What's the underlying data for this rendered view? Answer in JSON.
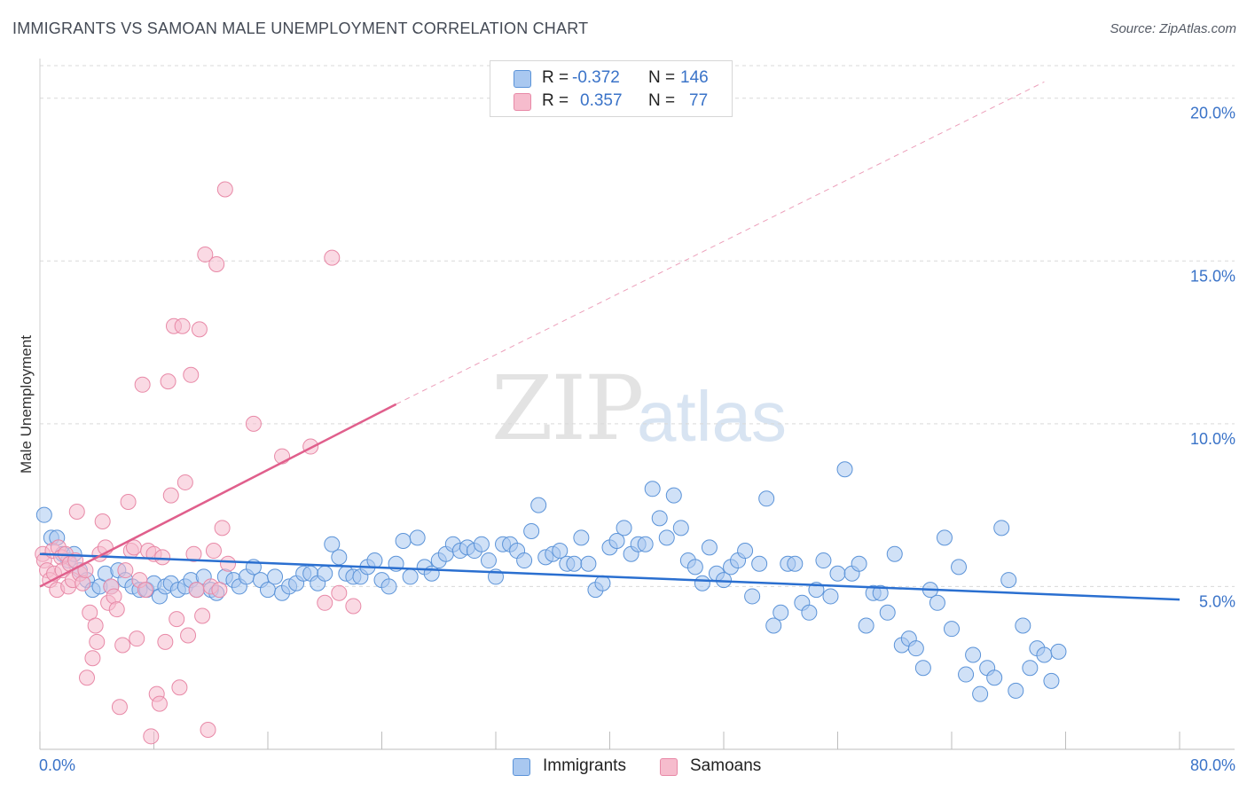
{
  "title": "IMMIGRANTS VS SAMOAN MALE UNEMPLOYMENT CORRELATION CHART",
  "source": "Source: ZipAtlas.com",
  "watermark": {
    "zip": "ZIP",
    "atlas": "atlas"
  },
  "colors": {
    "immigrants_fill": "#a9c8f0",
    "immigrants_stroke": "#5b93d8",
    "immigrants_line": "#2a6fd0",
    "samoans_fill": "#f6bccd",
    "samoans_stroke": "#e889a7",
    "samoans_line": "#e05f8c",
    "tick_label": "#3a73c8",
    "grid": "#d9d9d9"
  },
  "legend": {
    "rows": [
      {
        "r_label": "R =",
        "r_value": "-0.372",
        "n_label": "N =",
        "n_value": "146"
      },
      {
        "r_label": "R =",
        "r_value": "0.357",
        "n_label": "N =",
        "n_value": "77"
      }
    ]
  },
  "bottom_legend": {
    "immigrants": "Immigrants",
    "samoans": "Samoans"
  },
  "chart_data": {
    "type": "scatter",
    "xlabel": "",
    "ylabel": "Male Unemployment",
    "xlim": [
      0,
      80
    ],
    "ylim": [
      0,
      21
    ],
    "x_tick_labels": [
      "0.0%",
      "80.0%"
    ],
    "y_ticks": [
      5,
      10,
      15,
      20
    ],
    "y_tick_labels": [
      "5.0%",
      "10.0%",
      "15.0%",
      "20.0%"
    ],
    "grid": true,
    "legend_position": "top-center",
    "series": [
      {
        "name": "Immigrants",
        "trend": {
          "x": [
            0,
            80
          ],
          "y": [
            6.0,
            4.6
          ]
        },
        "points": [
          [
            0.3,
            7.2
          ],
          [
            0.8,
            6.5
          ],
          [
            1.2,
            6.5
          ],
          [
            1.6,
            6.0
          ],
          [
            2.0,
            5.8
          ],
          [
            2.4,
            6.0
          ],
          [
            2.8,
            5.5
          ],
          [
            3.3,
            5.2
          ],
          [
            3.7,
            4.9
          ],
          [
            4.2,
            5.0
          ],
          [
            4.6,
            5.4
          ],
          [
            5.0,
            5.0
          ],
          [
            5.5,
            5.5
          ],
          [
            6.0,
            5.2
          ],
          [
            6.5,
            5.0
          ],
          [
            7.0,
            4.9
          ],
          [
            7.5,
            4.9
          ],
          [
            8.0,
            5.1
          ],
          [
            8.4,
            4.7
          ],
          [
            8.8,
            5.0
          ],
          [
            9.2,
            5.1
          ],
          [
            9.7,
            4.9
          ],
          [
            10.2,
            5.0
          ],
          [
            10.6,
            5.2
          ],
          [
            11.0,
            4.9
          ],
          [
            11.5,
            5.3
          ],
          [
            12.0,
            4.9
          ],
          [
            12.4,
            4.8
          ],
          [
            13.0,
            5.3
          ],
          [
            13.6,
            5.2
          ],
          [
            14.0,
            5.0
          ],
          [
            14.5,
            5.3
          ],
          [
            15.0,
            5.6
          ],
          [
            15.5,
            5.2
          ],
          [
            16.0,
            4.9
          ],
          [
            16.5,
            5.3
          ],
          [
            17.0,
            4.8
          ],
          [
            17.5,
            5.0
          ],
          [
            18.0,
            5.1
          ],
          [
            18.5,
            5.4
          ],
          [
            19.0,
            5.4
          ],
          [
            19.5,
            5.1
          ],
          [
            20.0,
            5.4
          ],
          [
            20.5,
            6.3
          ],
          [
            21.0,
            5.9
          ],
          [
            21.5,
            5.4
          ],
          [
            22.0,
            5.3
          ],
          [
            22.5,
            5.3
          ],
          [
            23.0,
            5.6
          ],
          [
            23.5,
            5.8
          ],
          [
            24.0,
            5.2
          ],
          [
            24.5,
            5.0
          ],
          [
            25.0,
            5.7
          ],
          [
            25.5,
            6.4
          ],
          [
            26.0,
            5.3
          ],
          [
            26.5,
            6.5
          ],
          [
            27.0,
            5.6
          ],
          [
            27.5,
            5.4
          ],
          [
            28.0,
            5.8
          ],
          [
            28.5,
            6.0
          ],
          [
            29.0,
            6.3
          ],
          [
            29.5,
            6.1
          ],
          [
            30.0,
            6.2
          ],
          [
            30.5,
            6.1
          ],
          [
            31.0,
            6.3
          ],
          [
            31.5,
            5.8
          ],
          [
            32.0,
            5.3
          ],
          [
            32.5,
            6.3
          ],
          [
            33.0,
            6.3
          ],
          [
            33.5,
            6.1
          ],
          [
            34.0,
            5.8
          ],
          [
            34.5,
            6.7
          ],
          [
            35.0,
            7.5
          ],
          [
            35.5,
            5.9
          ],
          [
            36.0,
            6.0
          ],
          [
            36.5,
            6.1
          ],
          [
            37.0,
            5.7
          ],
          [
            37.5,
            5.7
          ],
          [
            38.0,
            6.5
          ],
          [
            38.5,
            5.7
          ],
          [
            39.0,
            4.9
          ],
          [
            39.5,
            5.1
          ],
          [
            40.0,
            6.2
          ],
          [
            40.5,
            6.4
          ],
          [
            41.0,
            6.8
          ],
          [
            41.5,
            6.0
          ],
          [
            42.0,
            6.3
          ],
          [
            42.5,
            6.3
          ],
          [
            43.0,
            8.0
          ],
          [
            43.5,
            7.1
          ],
          [
            44.0,
            6.5
          ],
          [
            44.5,
            7.8
          ],
          [
            45.0,
            6.8
          ],
          [
            45.5,
            5.8
          ],
          [
            46.0,
            5.6
          ],
          [
            46.5,
            5.1
          ],
          [
            47.0,
            6.2
          ],
          [
            47.5,
            5.4
          ],
          [
            48.0,
            5.2
          ],
          [
            48.5,
            5.6
          ],
          [
            49.0,
            5.8
          ],
          [
            49.5,
            6.1
          ],
          [
            50.0,
            4.7
          ],
          [
            50.5,
            5.7
          ],
          [
            51.0,
            7.7
          ],
          [
            51.5,
            3.8
          ],
          [
            52.0,
            4.2
          ],
          [
            52.5,
            5.7
          ],
          [
            53.0,
            5.7
          ],
          [
            53.5,
            4.5
          ],
          [
            54.0,
            4.2
          ],
          [
            54.5,
            4.9
          ],
          [
            55.0,
            5.8
          ],
          [
            55.5,
            4.7
          ],
          [
            56.0,
            5.4
          ],
          [
            56.5,
            8.6
          ],
          [
            57.0,
            5.4
          ],
          [
            57.5,
            5.7
          ],
          [
            58.0,
            3.8
          ],
          [
            58.5,
            4.8
          ],
          [
            59.0,
            4.8
          ],
          [
            59.5,
            4.2
          ],
          [
            60.0,
            6.0
          ],
          [
            60.5,
            3.2
          ],
          [
            61.0,
            3.4
          ],
          [
            61.5,
            3.1
          ],
          [
            62.0,
            2.5
          ],
          [
            62.5,
            4.9
          ],
          [
            63.0,
            4.5
          ],
          [
            63.5,
            6.5
          ],
          [
            64.0,
            3.7
          ],
          [
            64.5,
            5.6
          ],
          [
            65.0,
            2.3
          ],
          [
            65.5,
            2.9
          ],
          [
            66.0,
            1.7
          ],
          [
            66.5,
            2.5
          ],
          [
            67.0,
            2.2
          ],
          [
            67.5,
            6.8
          ],
          [
            68.0,
            5.2
          ],
          [
            68.5,
            1.8
          ],
          [
            69.0,
            3.8
          ],
          [
            69.5,
            2.5
          ],
          [
            70.0,
            3.1
          ],
          [
            70.5,
            2.9
          ],
          [
            71.0,
            2.1
          ],
          [
            71.5,
            3.0
          ]
        ]
      },
      {
        "name": "Samoans",
        "trend": {
          "x": [
            0,
            25
          ],
          "y": [
            5.0,
            10.6
          ]
        },
        "trend_extended": {
          "x": [
            25,
            70.5
          ],
          "y": [
            10.6,
            20.5
          ]
        },
        "points": [
          [
            0.2,
            6.0
          ],
          [
            0.3,
            5.8
          ],
          [
            0.5,
            5.5
          ],
          [
            0.7,
            5.2
          ],
          [
            0.9,
            6.1
          ],
          [
            1.0,
            5.4
          ],
          [
            1.2,
            4.9
          ],
          [
            1.3,
            6.2
          ],
          [
            1.5,
            5.9
          ],
          [
            1.6,
            5.5
          ],
          [
            1.8,
            6.0
          ],
          [
            2.0,
            5.0
          ],
          [
            2.1,
            5.7
          ],
          [
            2.3,
            5.2
          ],
          [
            2.5,
            5.8
          ],
          [
            2.6,
            7.3
          ],
          [
            2.8,
            5.4
          ],
          [
            3.0,
            5.1
          ],
          [
            3.2,
            5.5
          ],
          [
            3.3,
            2.2
          ],
          [
            3.5,
            4.2
          ],
          [
            3.7,
            2.8
          ],
          [
            3.9,
            3.8
          ],
          [
            4.0,
            3.3
          ],
          [
            4.2,
            6.0
          ],
          [
            4.4,
            7.0
          ],
          [
            4.6,
            6.2
          ],
          [
            4.8,
            4.5
          ],
          [
            5.0,
            5.0
          ],
          [
            5.2,
            4.7
          ],
          [
            5.4,
            4.3
          ],
          [
            5.6,
            1.3
          ],
          [
            5.8,
            3.2
          ],
          [
            6.0,
            5.5
          ],
          [
            6.2,
            7.6
          ],
          [
            6.4,
            6.1
          ],
          [
            6.6,
            6.2
          ],
          [
            6.8,
            3.4
          ],
          [
            7.0,
            5.2
          ],
          [
            7.2,
            11.2
          ],
          [
            7.4,
            4.9
          ],
          [
            7.6,
            6.1
          ],
          [
            7.8,
            0.4
          ],
          [
            8.0,
            6.0
          ],
          [
            8.2,
            1.7
          ],
          [
            8.4,
            1.4
          ],
          [
            8.6,
            5.9
          ],
          [
            8.8,
            3.3
          ],
          [
            9.0,
            11.3
          ],
          [
            9.2,
            7.8
          ],
          [
            9.4,
            13.0
          ],
          [
            9.6,
            4.0
          ],
          [
            9.8,
            1.9
          ],
          [
            10.0,
            13.0
          ],
          [
            10.2,
            8.2
          ],
          [
            10.4,
            3.5
          ],
          [
            10.6,
            11.5
          ],
          [
            10.8,
            6.0
          ],
          [
            11.0,
            4.9
          ],
          [
            11.2,
            12.9
          ],
          [
            11.4,
            4.1
          ],
          [
            11.6,
            15.2
          ],
          [
            11.8,
            0.6
          ],
          [
            12.0,
            5.0
          ],
          [
            12.2,
            6.1
          ],
          [
            12.4,
            14.9
          ],
          [
            12.6,
            4.9
          ],
          [
            12.8,
            6.8
          ],
          [
            13.0,
            17.2
          ],
          [
            13.2,
            5.7
          ],
          [
            15.0,
            10.0
          ],
          [
            17.0,
            9.0
          ],
          [
            19.0,
            9.3
          ],
          [
            20.0,
            4.5
          ],
          [
            20.5,
            15.1
          ],
          [
            21.0,
            4.8
          ],
          [
            22.0,
            4.4
          ]
        ]
      }
    ]
  }
}
